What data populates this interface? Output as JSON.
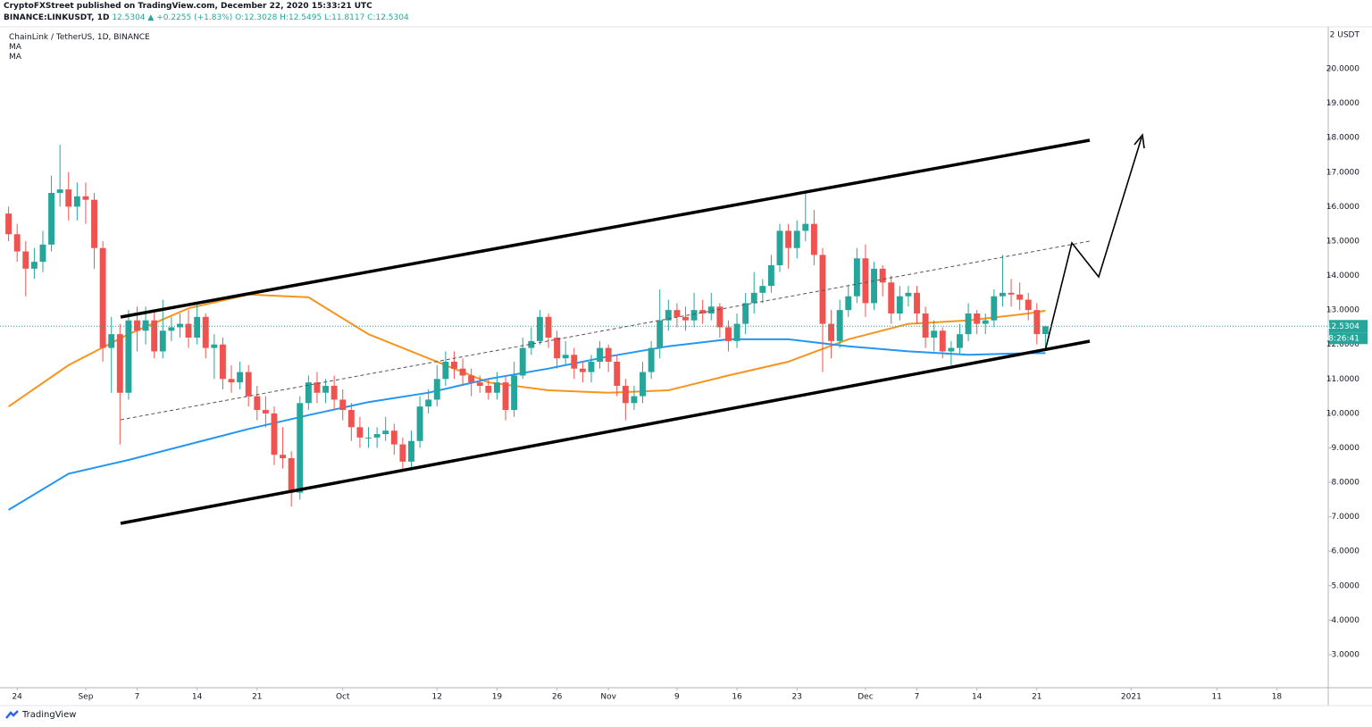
{
  "header": {
    "published": "CryptoFXStreet published on TradingView.com, December 22, 2020 15:33:21 UTC",
    "symbol": "BINANCE:LINKUSDT, 1D",
    "price": "12.5304",
    "change": "+0.2255 (+1.83%)",
    "ohlc": "O:12.3028 H:12.5495 L:11.8117 C:12.5304",
    "brand": "TradingView"
  },
  "chart_data": {
    "type": "candlestick",
    "title": "ChainLink / TetherUS, 1D, BINANCE",
    "currency_label": "2 USDT",
    "up_color": "#26a69a",
    "down_color": "#ef5350",
    "x": [
      "2020-08-23",
      "2020-08-24",
      "2020-08-25",
      "2020-08-26",
      "2020-08-27",
      "2020-08-28",
      "2020-08-29",
      "2020-08-30",
      "2020-08-31",
      "2020-09-01",
      "2020-09-02",
      "2020-09-03",
      "2020-09-04",
      "2020-09-05",
      "2020-09-06",
      "2020-09-07",
      "2020-09-08",
      "2020-09-09",
      "2020-09-10",
      "2020-09-11",
      "2020-09-12",
      "2020-09-13",
      "2020-09-14",
      "2020-09-15",
      "2020-09-16",
      "2020-09-17",
      "2020-09-18",
      "2020-09-19",
      "2020-09-20",
      "2020-09-21",
      "2020-09-22",
      "2020-09-23",
      "2020-09-24",
      "2020-09-25",
      "2020-09-26",
      "2020-09-27",
      "2020-09-28",
      "2020-09-29",
      "2020-09-30",
      "2020-10-01",
      "2020-10-02",
      "2020-10-03",
      "2020-10-04",
      "2020-10-05",
      "2020-10-06",
      "2020-10-07",
      "2020-10-08",
      "2020-10-09",
      "2020-10-10",
      "2020-10-11",
      "2020-10-12",
      "2020-10-13",
      "2020-10-14",
      "2020-10-15",
      "2020-10-16",
      "2020-10-17",
      "2020-10-18",
      "2020-10-19",
      "2020-10-20",
      "2020-10-21",
      "2020-10-22",
      "2020-10-23",
      "2020-10-24",
      "2020-10-25",
      "2020-10-26",
      "2020-10-27",
      "2020-10-28",
      "2020-10-29",
      "2020-10-30",
      "2020-10-31",
      "2020-11-01",
      "2020-11-02",
      "2020-11-03",
      "2020-11-04",
      "2020-11-05",
      "2020-11-06",
      "2020-11-07",
      "2020-11-08",
      "2020-11-09",
      "2020-11-10",
      "2020-11-11",
      "2020-11-12",
      "2020-11-13",
      "2020-11-14",
      "2020-11-15",
      "2020-11-16",
      "2020-11-17",
      "2020-11-18",
      "2020-11-19",
      "2020-11-20",
      "2020-11-21",
      "2020-11-22",
      "2020-11-23",
      "2020-11-24",
      "2020-11-25",
      "2020-11-26",
      "2020-11-27",
      "2020-11-28",
      "2020-11-29",
      "2020-11-30",
      "2020-12-01",
      "2020-12-02",
      "2020-12-03",
      "2020-12-04",
      "2020-12-05",
      "2020-12-06",
      "2020-12-07",
      "2020-12-08",
      "2020-12-09",
      "2020-12-10",
      "2020-12-11",
      "2020-12-12",
      "2020-12-13",
      "2020-12-14",
      "2020-12-15",
      "2020-12-16",
      "2020-12-17",
      "2020-12-18",
      "2020-12-19",
      "2020-12-20",
      "2020-12-21",
      "2020-12-22"
    ],
    "open": [
      15.8,
      15.2,
      14.7,
      14.2,
      14.4,
      14.9,
      16.4,
      16.5,
      16.0,
      16.3,
      16.2,
      14.8,
      11.9,
      12.3,
      10.6,
      12.7,
      12.4,
      12.7,
      11.8,
      12.4,
      12.5,
      12.6,
      12.2,
      12.8,
      11.9,
      12.0,
      11.0,
      10.9,
      11.2,
      10.5,
      10.1,
      10.0,
      8.8,
      8.7,
      7.7,
      10.3,
      10.9,
      10.6,
      10.8,
      10.4,
      10.1,
      9.6,
      9.3,
      9.3,
      9.4,
      9.5,
      9.1,
      8.6,
      9.2,
      10.2,
      10.4,
      11.0,
      11.5,
      11.3,
      11.1,
      10.9,
      10.8,
      10.6,
      10.9,
      10.1,
      11.1,
      11.9,
      12.1,
      12.8,
      12.2,
      11.6,
      11.7,
      11.3,
      11.2,
      11.5,
      11.9,
      11.5,
      10.8,
      10.3,
      10.5,
      11.2,
      11.9,
      12.7,
      13.0,
      12.8,
      12.7,
      13.0,
      12.9,
      13.1,
      12.5,
      12.1,
      12.6,
      13.2,
      13.5,
      13.7,
      14.3,
      15.3,
      14.8,
      15.3,
      15.5,
      14.6,
      12.6,
      12.1,
      13.0,
      13.4,
      14.5,
      13.2,
      14.2,
      13.8,
      12.9,
      13.4,
      13.5,
      12.9,
      12.2,
      12.4,
      11.8,
      11.9,
      12.3,
      12.9,
      12.6,
      12.7,
      13.4,
      13.5,
      13.45,
      13.3,
      13.0,
      12.3028
    ],
    "high": [
      16.0,
      15.5,
      15.0,
      14.8,
      15.3,
      16.9,
      17.8,
      17.0,
      16.7,
      16.7,
      16.4,
      15.0,
      12.8,
      12.6,
      13.0,
      13.1,
      13.1,
      13.0,
      13.3,
      12.8,
      12.9,
      13.0,
      13.2,
      12.9,
      12.3,
      12.2,
      11.4,
      11.5,
      11.4,
      10.8,
      10.5,
      10.2,
      9.6,
      8.9,
      10.5,
      11.1,
      11.2,
      11.0,
      11.1,
      10.7,
      10.3,
      9.9,
      9.6,
      9.6,
      9.9,
      9.7,
      9.3,
      9.5,
      10.5,
      10.7,
      11.4,
      11.8,
      11.8,
      11.6,
      11.3,
      11.1,
      11.0,
      11.2,
      11.1,
      11.5,
      12.2,
      12.5,
      13.0,
      12.9,
      12.4,
      12.1,
      11.9,
      11.5,
      11.7,
      12.1,
      12.0,
      11.7,
      11.0,
      10.8,
      11.5,
      12.1,
      13.6,
      13.3,
      13.2,
      13.1,
      13.5,
      13.3,
      13.5,
      13.2,
      12.7,
      12.9,
      13.5,
      14.1,
      13.9,
      14.6,
      15.5,
      15.5,
      15.6,
      16.4,
      15.9,
      14.8,
      13.0,
      13.3,
      13.7,
      14.8,
      14.9,
      14.4,
      14.3,
      14.0,
      13.7,
      13.7,
      13.7,
      13.1,
      12.7,
      12.5,
      12.1,
      12.6,
      13.2,
      13.0,
      12.9,
      13.6,
      14.6,
      13.9,
      13.8,
      13.5,
      13.2,
      12.5495
    ],
    "low": [
      15.0,
      14.4,
      13.4,
      13.9,
      14.1,
      14.7,
      16.0,
      15.6,
      15.6,
      15.5,
      14.2,
      11.5,
      10.6,
      9.1,
      10.4,
      11.8,
      12.0,
      11.6,
      11.6,
      12.1,
      12.2,
      11.9,
      12.0,
      11.6,
      11.0,
      10.7,
      10.6,
      10.7,
      10.2,
      9.8,
      9.6,
      8.5,
      8.4,
      7.3,
      7.5,
      10.1,
      10.3,
      10.3,
      10.1,
      9.8,
      9.2,
      9.0,
      9.0,
      9.0,
      9.2,
      8.8,
      8.3,
      8.4,
      9.0,
      10.0,
      10.2,
      10.8,
      11.0,
      10.8,
      10.5,
      10.6,
      10.4,
      10.4,
      9.8,
      9.9,
      11.0,
      11.7,
      12.0,
      11.9,
      11.3,
      11.4,
      11.0,
      10.9,
      10.9,
      11.3,
      11.2,
      10.5,
      9.8,
      10.1,
      10.3,
      11.0,
      11.6,
      12.4,
      12.5,
      12.4,
      12.5,
      12.6,
      12.7,
      12.2,
      11.8,
      11.9,
      12.3,
      12.9,
      13.2,
      13.5,
      14.1,
      14.2,
      14.5,
      15.0,
      14.3,
      11.2,
      11.6,
      11.9,
      12.8,
      13.2,
      12.8,
      13.0,
      13.4,
      12.6,
      12.7,
      13.1,
      12.6,
      11.9,
      11.8,
      11.6,
      11.4,
      11.7,
      12.1,
      12.3,
      12.3,
      12.5,
      13.1,
      13.1,
      13.0,
      12.7,
      12.0,
      11.8117
    ],
    "close": [
      15.2,
      14.7,
      14.2,
      14.4,
      14.9,
      16.4,
      16.5,
      16.0,
      16.3,
      16.2,
      14.8,
      11.9,
      12.3,
      10.6,
      12.7,
      12.4,
      12.7,
      11.8,
      12.4,
      12.5,
      12.6,
      12.2,
      12.8,
      11.9,
      12.0,
      11.0,
      10.9,
      11.2,
      10.5,
      10.1,
      10.0,
      8.8,
      8.7,
      7.7,
      10.3,
      10.9,
      10.6,
      10.8,
      10.4,
      10.1,
      9.6,
      9.3,
      9.3,
      9.4,
      9.5,
      9.1,
      8.6,
      9.2,
      10.2,
      10.4,
      11.0,
      11.5,
      11.3,
      11.1,
      10.9,
      10.8,
      10.6,
      10.9,
      10.1,
      11.1,
      11.9,
      12.1,
      12.8,
      12.2,
      11.6,
      11.7,
      11.3,
      11.2,
      11.5,
      11.9,
      11.5,
      10.8,
      10.3,
      10.5,
      11.2,
      11.9,
      12.7,
      13.0,
      12.8,
      12.7,
      13.0,
      12.9,
      13.1,
      12.5,
      12.1,
      12.6,
      13.2,
      13.5,
      13.7,
      14.3,
      15.3,
      14.8,
      15.3,
      15.5,
      14.6,
      12.6,
      12.1,
      13.0,
      13.4,
      14.5,
      13.2,
      14.2,
      13.8,
      12.9,
      13.4,
      13.5,
      12.9,
      12.2,
      12.4,
      11.8,
      11.9,
      12.3,
      12.9,
      12.6,
      12.7,
      13.4,
      13.5,
      13.45,
      13.3,
      13.0,
      12.3028,
      12.5304
    ],
    "moving_averages": [
      {
        "name": "MA",
        "color": "#f7941d",
        "x": [
          "2020-08-23",
          "2020-08-30",
          "2020-09-06",
          "2020-09-13",
          "2020-09-20",
          "2020-09-27",
          "2020-10-04",
          "2020-10-11",
          "2020-10-18",
          "2020-10-25",
          "2020-11-01",
          "2020-11-08",
          "2020-11-15",
          "2020-11-22",
          "2020-11-29",
          "2020-12-06",
          "2020-12-13",
          "2020-12-20",
          "2020-12-22"
        ],
        "values": [
          10.2,
          11.4,
          12.3,
          13.05,
          13.45,
          13.37,
          12.3,
          11.6,
          10.9,
          10.67,
          10.6,
          10.67,
          11.1,
          11.5,
          12.15,
          12.6,
          12.7,
          12.9,
          12.98
        ]
      },
      {
        "name": "MA",
        "color": "#2196f3",
        "x": [
          "2020-08-23",
          "2020-08-30",
          "2020-09-06",
          "2020-09-13",
          "2020-09-20",
          "2020-09-27",
          "2020-10-04",
          "2020-10-11",
          "2020-10-18",
          "2020-10-25",
          "2020-11-01",
          "2020-11-08",
          "2020-11-15",
          "2020-11-22",
          "2020-11-29",
          "2020-12-06",
          "2020-12-13",
          "2020-12-20",
          "2020-12-22"
        ],
        "values": [
          7.2,
          8.25,
          8.65,
          9.1,
          9.55,
          9.95,
          10.33,
          10.6,
          11.0,
          11.3,
          11.65,
          11.95,
          12.15,
          12.15,
          11.95,
          11.8,
          11.7,
          11.75,
          11.75
        ]
      }
    ],
    "last_price": 12.5304,
    "countdown": "08:26:41",
    "xlim": [
      "2020-08-22",
      "2021-01-24"
    ],
    "ylim": [
      2.04,
      21.22
    ],
    "yticks": [
      {
        "value": 3,
        "label": "3.0000"
      },
      {
        "value": 4,
        "label": "4.0000"
      },
      {
        "value": 5,
        "label": "5.0000"
      },
      {
        "value": 6,
        "label": "6.0000"
      },
      {
        "value": 7,
        "label": "7.0000"
      },
      {
        "value": 8,
        "label": "8.0000"
      },
      {
        "value": 9,
        "label": "9.0000"
      },
      {
        "value": 10,
        "label": "10.0000"
      },
      {
        "value": 11,
        "label": "11.0000"
      },
      {
        "value": 12,
        "label": "12.0000"
      },
      {
        "value": 13,
        "label": "13.0000"
      },
      {
        "value": 14,
        "label": "14.0000"
      },
      {
        "value": 15,
        "label": "15.0000"
      },
      {
        "value": 16,
        "label": "16.0000"
      },
      {
        "value": 17,
        "label": "17.0000"
      },
      {
        "value": 18,
        "label": "18.0000"
      },
      {
        "value": 19,
        "label": "19.0000"
      },
      {
        "value": 20,
        "label": "20.0000"
      }
    ],
    "xticks": [
      {
        "value": "2020-08-24",
        "label": "24"
      },
      {
        "value": "2020-09-01",
        "label": "Sep"
      },
      {
        "value": "2020-09-07",
        "label": "7"
      },
      {
        "value": "2020-09-14",
        "label": "14"
      },
      {
        "value": "2020-09-21",
        "label": "21"
      },
      {
        "value": "2020-10-01",
        "label": "Oct"
      },
      {
        "value": "2020-10-12",
        "label": "12"
      },
      {
        "value": "2020-10-19",
        "label": "19"
      },
      {
        "value": "2020-10-26",
        "label": "26"
      },
      {
        "value": "2020-11-01",
        "label": "Nov"
      },
      {
        "value": "2020-11-09",
        "label": "9"
      },
      {
        "value": "2020-11-16",
        "label": "16"
      },
      {
        "value": "2020-11-23",
        "label": "23"
      },
      {
        "value": "2020-12-01",
        "label": "Dec"
      },
      {
        "value": "2020-12-07",
        "label": "7"
      },
      {
        "value": "2020-12-14",
        "label": "14"
      },
      {
        "value": "2020-12-21",
        "label": "21"
      },
      {
        "value": "2021-01-01",
        "label": "2021"
      },
      {
        "value": "2021-01-11",
        "label": "11"
      },
      {
        "value": "2021-01-18",
        "label": "18"
      }
    ],
    "grid": false
  }
}
